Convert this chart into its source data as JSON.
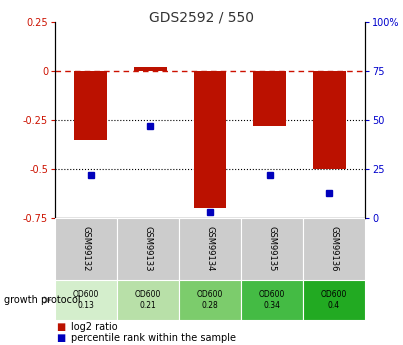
{
  "title": "GDS2592 / 550",
  "samples": [
    "GSM99132",
    "GSM99133",
    "GSM99134",
    "GSM99135",
    "GSM99136"
  ],
  "log2_ratios": [
    -0.35,
    0.02,
    -0.7,
    -0.28,
    -0.5
  ],
  "percentile_ranks": [
    22,
    47,
    3,
    22,
    13
  ],
  "ylim_left": [
    -0.75,
    0.25
  ],
  "ylim_right": [
    0,
    100
  ],
  "yticks_left": [
    0.25,
    0,
    -0.25,
    -0.5,
    -0.75
  ],
  "yticks_right": [
    100,
    75,
    50,
    25,
    0
  ],
  "bar_color": "#bb1100",
  "dot_color": "#0000bb",
  "hline_color": "#cc1100",
  "dotted_line_color": "#000000",
  "background_color": "#ffffff",
  "bar_width": 0.55,
  "protocol_labels": [
    "OD600\n0.13",
    "OD600\n0.21",
    "OD600\n0.28",
    "OD600\n0.34",
    "OD600\n0.4"
  ],
  "protocol_colors": [
    "#d4eecc",
    "#b8e0a8",
    "#7ccc6c",
    "#44bb44",
    "#22aa22"
  ],
  "protocol_row_label": "growth protocol",
  "legend_bar_label": "log2 ratio",
  "legend_dot_label": "percentile rank within the sample",
  "title_color": "#333333",
  "left_tick_color": "#cc1100",
  "right_tick_color": "#0000cc",
  "sample_cell_color": "#cccccc"
}
